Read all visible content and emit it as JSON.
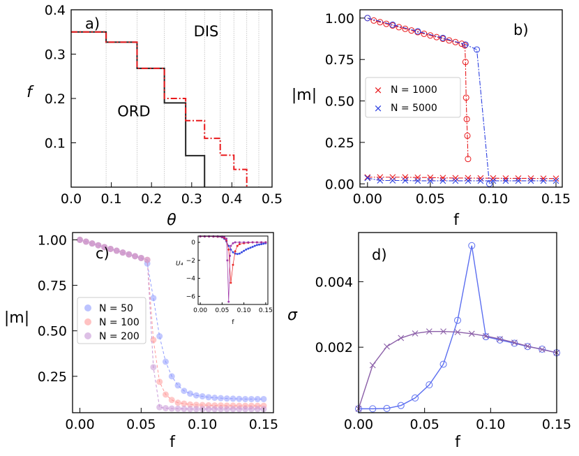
{
  "chart_data": [
    {
      "id": "a",
      "type": "line",
      "panel_label": "a)",
      "xlabel": "θ",
      "ylabel": "f",
      "xlim": [
        0.0,
        0.5
      ],
      "ylim": [
        0.0,
        0.4
      ],
      "xticks": [
        "0.0",
        "0.1",
        "0.2",
        "0.3",
        "0.4",
        "0.5"
      ],
      "xtick_values": [
        0.0,
        0.1,
        0.2,
        0.3,
        0.4,
        0.5
      ],
      "yticks": [
        "0.1",
        "0.2",
        "0.3",
        "0.4"
      ],
      "ytick_values": [
        0.1,
        0.2,
        0.3,
        0.4
      ],
      "region_labels": [
        {
          "text": "DIS",
          "x": 0.305,
          "y": 0.34
        },
        {
          "text": "ORD",
          "x": 0.115,
          "y": 0.16
        }
      ],
      "vertical_gridlines": [
        0.087,
        0.164,
        0.232,
        0.285,
        0.332,
        0.371,
        0.405,
        0.437,
        0.467,
        0.5
      ],
      "series": [
        {
          "name": "black",
          "color": "#222222",
          "style": "solid",
          "x": [
            0.0,
            0.087,
            0.087,
            0.164,
            0.164,
            0.232,
            0.232,
            0.285,
            0.285,
            0.332,
            0.332
          ],
          "y": [
            0.35,
            0.35,
            0.327,
            0.327,
            0.268,
            0.268,
            0.19,
            0.19,
            0.071,
            0.071,
            0.0
          ]
        },
        {
          "name": "red",
          "color": "#e8191c",
          "style": "dashdot",
          "x": [
            0.0,
            0.087,
            0.087,
            0.164,
            0.164,
            0.232,
            0.232,
            0.285,
            0.285,
            0.332,
            0.332,
            0.371,
            0.371,
            0.405,
            0.405,
            0.437,
            0.437
          ],
          "y": [
            0.35,
            0.35,
            0.327,
            0.327,
            0.268,
            0.268,
            0.2,
            0.2,
            0.15,
            0.15,
            0.11,
            0.11,
            0.072,
            0.072,
            0.04,
            0.04,
            0.0
          ]
        }
      ]
    },
    {
      "id": "b",
      "type": "line",
      "panel_label": "b)",
      "xlabel": "f",
      "ylabel": "|m|",
      "xlim": [
        -0.006,
        0.155
      ],
      "ylim": [
        -0.02,
        1.05
      ],
      "xticks": [
        "0.00",
        "0.05",
        "0.10",
        "0.15"
      ],
      "xtick_values": [
        0.0,
        0.05,
        0.1,
        0.15
      ],
      "yticks": [
        "0.00",
        "0.25",
        "0.50",
        "0.75",
        "1.00"
      ],
      "ytick_values": [
        0.0,
        0.25,
        0.5,
        0.75,
        1.0
      ],
      "legend": {
        "position": "center-left",
        "entries": [
          "N = 1000",
          "N = 5000"
        ]
      },
      "series": [
        {
          "name": "N = 1000 (ordered branch)",
          "color": "#e8191c",
          "marker": "circle",
          "x": [
            0.0,
            0.005,
            0.01,
            0.015,
            0.02,
            0.025,
            0.03,
            0.035,
            0.04,
            0.045,
            0.05,
            0.055,
            0.06,
            0.065,
            0.07,
            0.075,
            0.0775,
            0.078,
            0.0785,
            0.079,
            0.0795,
            0.08
          ],
          "y": [
            1.0,
            0.985,
            0.975,
            0.965,
            0.955,
            0.945,
            0.935,
            0.925,
            0.915,
            0.905,
            0.895,
            0.885,
            0.875,
            0.865,
            0.855,
            0.845,
            0.835,
            0.735,
            0.52,
            0.39,
            0.29,
            0.15
          ]
        },
        {
          "name": "N = 1000 (disordered branch)",
          "color": "#e8191c",
          "marker": "x",
          "x": [
            0.0,
            0.01,
            0.02,
            0.03,
            0.04,
            0.05,
            0.06,
            0.07,
            0.08,
            0.09,
            0.1,
            0.11,
            0.12,
            0.13,
            0.14,
            0.15
          ],
          "y": [
            0.04,
            0.04,
            0.04,
            0.04,
            0.038,
            0.038,
            0.036,
            0.035,
            0.035,
            0.034,
            0.034,
            0.033,
            0.033,
            0.033,
            0.032,
            0.032
          ]
        },
        {
          "name": "N = 5000 (ordered branch)",
          "color": "#2b3fe0",
          "marker": "circle",
          "x": [
            0.0,
            0.02,
            0.04,
            0.06,
            0.078,
            0.087,
            0.097
          ],
          "y": [
            1.0,
            0.96,
            0.92,
            0.88,
            0.84,
            0.81,
            0.0
          ]
        },
        {
          "name": "N = 5000 (disordered branch)",
          "color": "#2b3fe0",
          "marker": "x",
          "x": [
            0.0,
            0.01,
            0.02,
            0.03,
            0.04,
            0.05,
            0.06,
            0.07,
            0.08,
            0.09,
            0.1,
            0.11,
            0.12,
            0.13,
            0.14,
            0.15
          ],
          "y": [
            0.035,
            0.02,
            0.02,
            0.02,
            0.018,
            0.018,
            0.018,
            0.018,
            0.018,
            0.018,
            0.018,
            0.018,
            0.018,
            0.018,
            0.018,
            0.018
          ]
        }
      ]
    },
    {
      "id": "c",
      "type": "scatter",
      "panel_label": "c)",
      "xlabel": "f",
      "ylabel": "|m|",
      "xlim": [
        -0.006,
        0.158
      ],
      "ylim": [
        0.05,
        1.04
      ],
      "xticks": [
        "0.00",
        "0.05",
        "0.10",
        "0.15"
      ],
      "xtick_values": [
        0.0,
        0.05,
        0.1,
        0.15
      ],
      "yticks": [
        "0.25",
        "0.50",
        "0.75",
        "1.00"
      ],
      "ytick_values": [
        0.25,
        0.5,
        0.75,
        1.0
      ],
      "legend": {
        "position": "center-left",
        "entries": [
          "N = 50",
          "N = 100",
          "N = 200"
        ]
      },
      "series": [
        {
          "name": "N = 50",
          "color": "#8f9bff",
          "x": [
            0.0,
            0.005,
            0.01,
            0.015,
            0.02,
            0.025,
            0.03,
            0.035,
            0.04,
            0.045,
            0.05,
            0.055,
            0.06,
            0.065,
            0.07,
            0.075,
            0.08,
            0.085,
            0.09,
            0.095,
            0.1,
            0.105,
            0.11,
            0.115,
            0.12,
            0.125,
            0.13,
            0.135,
            0.14,
            0.145,
            0.15
          ],
          "y": [
            1.0,
            0.99,
            0.98,
            0.97,
            0.96,
            0.95,
            0.94,
            0.93,
            0.92,
            0.91,
            0.9,
            0.87,
            0.68,
            0.47,
            0.33,
            0.25,
            0.2,
            0.17,
            0.155,
            0.145,
            0.14,
            0.135,
            0.132,
            0.13,
            0.128,
            0.127,
            0.126,
            0.125,
            0.125,
            0.125,
            0.125
          ]
        },
        {
          "name": "N = 100",
          "color": "#ff9a9a",
          "x": [
            0.0,
            0.005,
            0.01,
            0.015,
            0.02,
            0.025,
            0.03,
            0.035,
            0.04,
            0.045,
            0.05,
            0.055,
            0.06,
            0.065,
            0.07,
            0.075,
            0.08,
            0.085,
            0.09,
            0.095,
            0.1,
            0.105,
            0.11,
            0.115,
            0.12,
            0.125,
            0.13,
            0.135,
            0.14,
            0.145,
            0.15
          ],
          "y": [
            1.0,
            0.99,
            0.98,
            0.97,
            0.96,
            0.95,
            0.94,
            0.93,
            0.92,
            0.91,
            0.9,
            0.89,
            0.45,
            0.22,
            0.15,
            0.12,
            0.105,
            0.1,
            0.095,
            0.093,
            0.092,
            0.091,
            0.09,
            0.09,
            0.089,
            0.089,
            0.088,
            0.088,
            0.088,
            0.088,
            0.088
          ]
        },
        {
          "name": "N = 200",
          "color": "#c796d6",
          "x": [
            0.0,
            0.005,
            0.01,
            0.015,
            0.02,
            0.025,
            0.03,
            0.035,
            0.04,
            0.045,
            0.05,
            0.055,
            0.06,
            0.065,
            0.07,
            0.075,
            0.08,
            0.085,
            0.09,
            0.095,
            0.1,
            0.105,
            0.11,
            0.115,
            0.12,
            0.125,
            0.13,
            0.135,
            0.14,
            0.145,
            0.15
          ],
          "y": [
            1.0,
            0.99,
            0.98,
            0.97,
            0.96,
            0.95,
            0.94,
            0.93,
            0.92,
            0.91,
            0.9,
            0.89,
            0.3,
            0.08,
            0.075,
            0.073,
            0.072,
            0.071,
            0.07,
            0.07,
            0.07,
            0.07,
            0.07,
            0.07,
            0.07,
            0.07,
            0.07,
            0.07,
            0.07,
            0.07,
            0.07
          ]
        }
      ],
      "inset": {
        "type": "scatter",
        "xlabel": "f",
        "ylabel": "U₄",
        "xlim": [
          -0.005,
          0.155
        ],
        "ylim": [
          -6.9,
          0.7
        ],
        "xticks": [
          "0.00",
          "0.05",
          "0.10",
          "0.15"
        ],
        "xtick_values": [
          0.0,
          0.05,
          0.1,
          0.15
        ],
        "yticks": [
          "0",
          "−2",
          "−4",
          "−6"
        ],
        "ytick_values": [
          0,
          -2,
          -4,
          -6
        ],
        "series": [
          {
            "name": "N = 50",
            "color": "#2b3fe0",
            "x": [
              0.0,
              0.01,
              0.02,
              0.03,
              0.04,
              0.05,
              0.055,
              0.06,
              0.065,
              0.07,
              0.075,
              0.08,
              0.085,
              0.09,
              0.095,
              0.1,
              0.105,
              0.11,
              0.115,
              0.12,
              0.125,
              0.13,
              0.135,
              0.14,
              0.145,
              0.15
            ],
            "y": [
              0.65,
              0.65,
              0.65,
              0.64,
              0.62,
              0.55,
              0.4,
              0.1,
              -0.4,
              -0.8,
              -1.1,
              -1.25,
              -1.3,
              -1.25,
              -1.1,
              -0.95,
              -0.8,
              -0.7,
              -0.6,
              -0.5,
              -0.4,
              -0.3,
              -0.25,
              -0.2,
              -0.15,
              -0.1
            ]
          },
          {
            "name": "N = 100",
            "color": "#e8191c",
            "x": [
              0.0,
              0.01,
              0.02,
              0.03,
              0.04,
              0.05,
              0.055,
              0.06,
              0.065,
              0.07,
              0.075,
              0.08,
              0.085,
              0.09,
              0.1,
              0.11,
              0.12,
              0.13,
              0.14,
              0.15
            ],
            "y": [
              0.65,
              0.65,
              0.65,
              0.64,
              0.63,
              0.6,
              0.5,
              0.2,
              -0.8,
              -4.5,
              -2.5,
              -1.0,
              -0.4,
              -0.2,
              -0.1,
              -0.05,
              0.0,
              0.0,
              0.0,
              0.0
            ]
          },
          {
            "name": "N = 200",
            "color": "#9b2fa6",
            "x": [
              0.0,
              0.01,
              0.02,
              0.03,
              0.04,
              0.05,
              0.055,
              0.06,
              0.062,
              0.065,
              0.068,
              0.07,
              0.075,
              0.08,
              0.09,
              0.1,
              0.11,
              0.12,
              0.13,
              0.14,
              0.15
            ],
            "y": [
              0.66,
              0.66,
              0.66,
              0.66,
              0.66,
              0.64,
              0.6,
              0.4,
              -2.0,
              -6.6,
              -1.5,
              -0.4,
              -0.1,
              0.0,
              0.0,
              0.0,
              0.0,
              0.0,
              0.0,
              0.0,
              0.0
            ]
          }
        ]
      }
    },
    {
      "id": "d",
      "type": "line",
      "panel_label": "d)",
      "xlabel": "f",
      "ylabel": "σ",
      "xlim": [
        0.0,
        0.15
      ],
      "ylim": [
        0.0,
        0.0055
      ],
      "xticks": [
        "0.00",
        "0.05",
        "0.10",
        "0.15"
      ],
      "xtick_values": [
        0.0,
        0.05,
        0.1,
        0.15
      ],
      "yticks": [
        "0.002",
        "0.004"
      ],
      "ytick_values": [
        0.002,
        0.004
      ],
      "series": [
        {
          "name": "N = 5000",
          "color": "#5b6ef0",
          "marker": "circle",
          "x": [
            0.0,
            0.0107,
            0.0214,
            0.0321,
            0.0428,
            0.0535,
            0.0642,
            0.075,
            0.0857,
            0.0964,
            0.107,
            0.118,
            0.128,
            0.139,
            0.15
          ],
          "y": [
            0.00012,
            0.00012,
            0.00013,
            0.00022,
            0.00045,
            0.00085,
            0.00148,
            0.00282,
            0.0051,
            0.00232,
            0.00222,
            0.00212,
            0.00202,
            0.00194,
            0.00183
          ]
        },
        {
          "name": "N = 1000",
          "color": "#8b5fa8",
          "marker": "x",
          "x": [
            0.0,
            0.0107,
            0.0214,
            0.0321,
            0.0428,
            0.0535,
            0.0642,
            0.075,
            0.0857,
            0.0964,
            0.107,
            0.118,
            0.128,
            0.139,
            0.15
          ],
          "y": [
            0.00012,
            0.00145,
            0.00202,
            0.00228,
            0.00242,
            0.00248,
            0.00248,
            0.00246,
            0.00241,
            0.00234,
            0.00225,
            0.00214,
            0.00203,
            0.00193,
            0.00183
          ]
        }
      ]
    }
  ]
}
